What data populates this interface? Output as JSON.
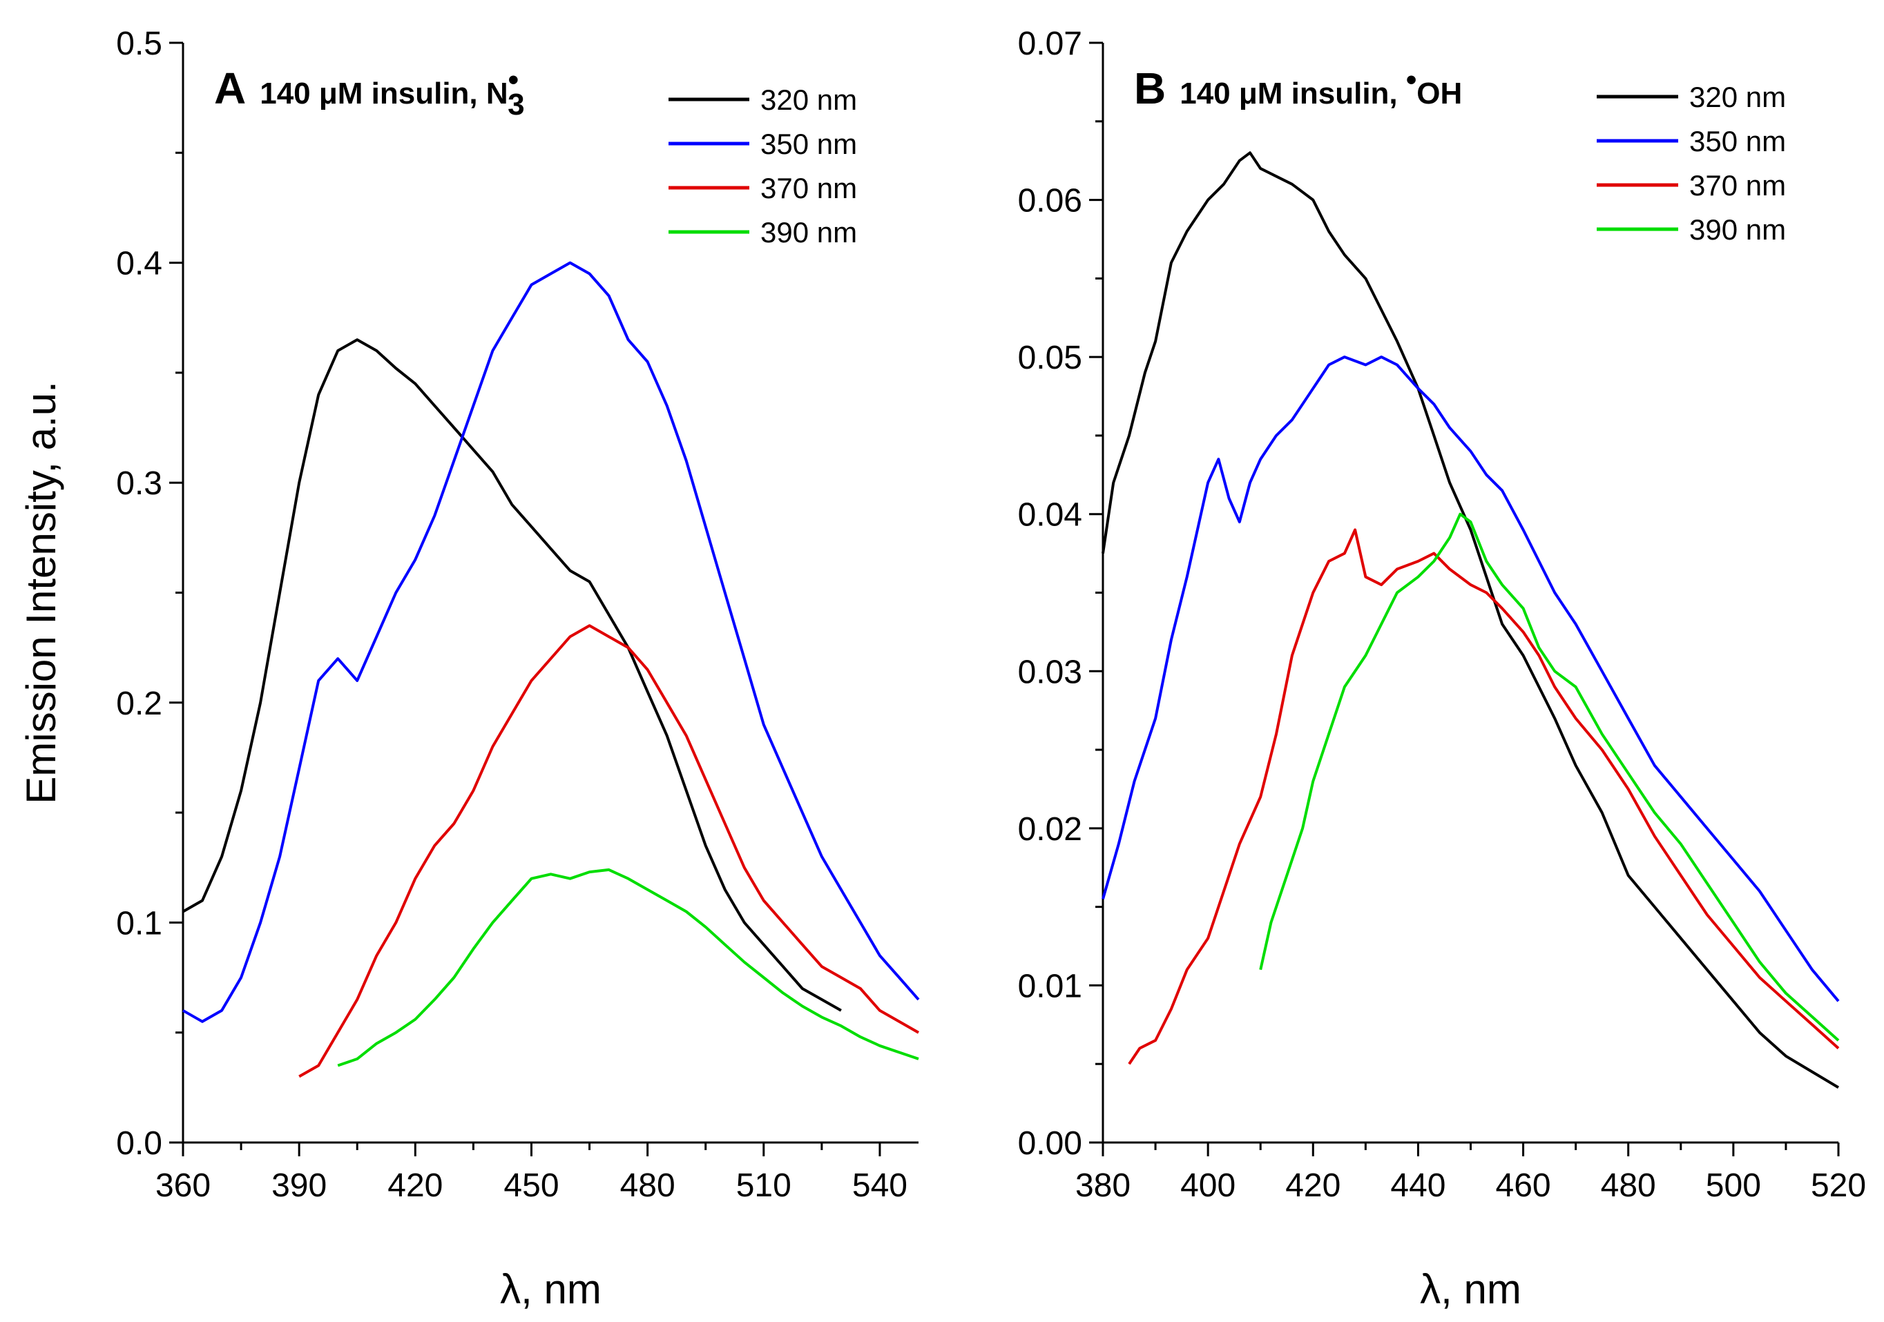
{
  "chart_data": [
    {
      "type": "line",
      "panel_letter": "A",
      "title_text": "140 μM insulin, N",
      "title_subscript": "3",
      "title_superscript": "•",
      "xlabel": "λ, nm",
      "ylabel": "Emission Intensity, a.u.",
      "xlim": [
        360,
        550
      ],
      "ylim": [
        0.0,
        0.5
      ],
      "xticks": [
        360,
        390,
        420,
        450,
        480,
        510,
        540
      ],
      "xtick_labels": [
        "360",
        "390",
        "420",
        "450",
        "480",
        "510",
        "540"
      ],
      "yticks": [
        0.0,
        0.1,
        0.2,
        0.3,
        0.4,
        0.5
      ],
      "ytick_labels": [
        "0.0",
        "0.1",
        "0.2",
        "0.3",
        "0.4",
        "0.5"
      ],
      "legend_position": "top-right",
      "series": [
        {
          "name": "320 nm",
          "color": "#000000",
          "x": [
            360,
            365,
            370,
            375,
            380,
            385,
            390,
            395,
            400,
            405,
            410,
            415,
            420,
            425,
            430,
            435,
            440,
            445,
            450,
            455,
            460,
            465,
            470,
            475,
            480,
            485,
            490,
            495,
            500,
            505,
            510,
            515,
            520,
            525,
            530
          ],
          "y": [
            0.105,
            0.11,
            0.13,
            0.16,
            0.2,
            0.25,
            0.3,
            0.34,
            0.36,
            0.365,
            0.36,
            0.352,
            0.345,
            0.335,
            0.325,
            0.315,
            0.305,
            0.29,
            0.28,
            0.27,
            0.26,
            0.255,
            0.24,
            0.225,
            0.205,
            0.185,
            0.16,
            0.135,
            0.115,
            0.1,
            0.09,
            0.08,
            0.07,
            0.065,
            0.06
          ]
        },
        {
          "name": "350 nm",
          "color": "#0000ff",
          "x": [
            360,
            365,
            370,
            375,
            380,
            385,
            390,
            395,
            400,
            405,
            410,
            415,
            420,
            425,
            430,
            435,
            440,
            445,
            450,
            455,
            460,
            465,
            470,
            475,
            480,
            485,
            490,
            495,
            500,
            505,
            510,
            515,
            520,
            525,
            530,
            535,
            540,
            545,
            550
          ],
          "y": [
            0.06,
            0.055,
            0.06,
            0.075,
            0.1,
            0.13,
            0.17,
            0.21,
            0.22,
            0.21,
            0.23,
            0.25,
            0.265,
            0.285,
            0.31,
            0.335,
            0.36,
            0.375,
            0.39,
            0.395,
            0.4,
            0.395,
            0.385,
            0.365,
            0.355,
            0.335,
            0.31,
            0.28,
            0.25,
            0.22,
            0.19,
            0.17,
            0.15,
            0.13,
            0.115,
            0.1,
            0.085,
            0.075,
            0.065
          ]
        },
        {
          "name": "370 nm",
          "color": "#e00000",
          "x": [
            390,
            395,
            400,
            405,
            410,
            415,
            420,
            425,
            430,
            435,
            440,
            445,
            450,
            455,
            460,
            465,
            470,
            475,
            480,
            485,
            490,
            495,
            500,
            505,
            510,
            515,
            520,
            525,
            530,
            535,
            540,
            545,
            550
          ],
          "y": [
            0.03,
            0.035,
            0.05,
            0.065,
            0.085,
            0.1,
            0.12,
            0.135,
            0.145,
            0.16,
            0.18,
            0.195,
            0.21,
            0.22,
            0.23,
            0.235,
            0.23,
            0.225,
            0.215,
            0.2,
            0.185,
            0.165,
            0.145,
            0.125,
            0.11,
            0.1,
            0.09,
            0.08,
            0.075,
            0.07,
            0.06,
            0.055,
            0.05
          ]
        },
        {
          "name": "390 nm",
          "color": "#00dd00",
          "x": [
            400,
            405,
            410,
            415,
            420,
            425,
            430,
            435,
            440,
            445,
            450,
            455,
            460,
            465,
            470,
            475,
            480,
            485,
            490,
            495,
            500,
            505,
            510,
            515,
            520,
            525,
            530,
            535,
            540,
            545,
            550
          ],
          "y": [
            0.035,
            0.038,
            0.045,
            0.05,
            0.056,
            0.065,
            0.075,
            0.088,
            0.1,
            0.11,
            0.12,
            0.122,
            0.12,
            0.123,
            0.124,
            0.12,
            0.115,
            0.11,
            0.105,
            0.098,
            0.09,
            0.082,
            0.075,
            0.068,
            0.062,
            0.057,
            0.053,
            0.048,
            0.044,
            0.041,
            0.038
          ]
        }
      ]
    },
    {
      "type": "line",
      "panel_letter": "B",
      "title_text": "140 μM insulin, ",
      "title_superscript": "•",
      "title_suffix": "OH",
      "xlabel": "λ, nm",
      "ylabel": "",
      "xlim": [
        380,
        520
      ],
      "ylim": [
        0.0,
        0.07
      ],
      "xticks": [
        380,
        400,
        420,
        440,
        460,
        480,
        500,
        520
      ],
      "xtick_labels": [
        "380",
        "400",
        "420",
        "440",
        "460",
        "480",
        "500",
        "520"
      ],
      "yticks": [
        0.0,
        0.01,
        0.02,
        0.03,
        0.04,
        0.05,
        0.06,
        0.07
      ],
      "ytick_labels": [
        "0.00",
        "0.01",
        "0.02",
        "0.03",
        "0.04",
        "0.05",
        "0.06",
        "0.07"
      ],
      "legend_position": "top-right",
      "series": [
        {
          "name": "320 nm",
          "color": "#000000",
          "x": [
            380,
            382,
            385,
            388,
            390,
            393,
            396,
            400,
            403,
            406,
            408,
            410,
            413,
            416,
            420,
            423,
            426,
            430,
            433,
            436,
            440,
            443,
            446,
            450,
            453,
            456,
            460,
            463,
            466,
            470,
            475,
            480,
            485,
            490,
            495,
            500,
            505,
            510,
            515,
            520
          ],
          "y": [
            0.0375,
            0.042,
            0.045,
            0.049,
            0.051,
            0.056,
            0.058,
            0.06,
            0.061,
            0.0625,
            0.063,
            0.062,
            0.0615,
            0.061,
            0.06,
            0.058,
            0.0565,
            0.055,
            0.053,
            0.051,
            0.048,
            0.045,
            0.042,
            0.039,
            0.036,
            0.033,
            0.031,
            0.029,
            0.027,
            0.024,
            0.021,
            0.017,
            0.015,
            0.013,
            0.011,
            0.009,
            0.007,
            0.0055,
            0.0045,
            0.0035
          ]
        },
        {
          "name": "350 nm",
          "color": "#0000ff",
          "x": [
            380,
            383,
            386,
            390,
            393,
            396,
            400,
            402,
            404,
            406,
            408,
            410,
            413,
            416,
            420,
            423,
            426,
            430,
            433,
            436,
            440,
            443,
            446,
            450,
            453,
            456,
            460,
            463,
            466,
            470,
            475,
            480,
            485,
            490,
            495,
            500,
            505,
            510,
            515,
            520
          ],
          "y": [
            0.0155,
            0.019,
            0.023,
            0.027,
            0.032,
            0.036,
            0.042,
            0.0435,
            0.041,
            0.0395,
            0.042,
            0.0435,
            0.045,
            0.046,
            0.048,
            0.0495,
            0.05,
            0.0495,
            0.05,
            0.0495,
            0.048,
            0.047,
            0.0455,
            0.044,
            0.0425,
            0.0415,
            0.039,
            0.037,
            0.035,
            0.033,
            0.03,
            0.027,
            0.024,
            0.022,
            0.02,
            0.018,
            0.016,
            0.0135,
            0.011,
            0.009
          ]
        },
        {
          "name": "370 nm",
          "color": "#e00000",
          "x": [
            385,
            387,
            390,
            393,
            396,
            400,
            403,
            406,
            410,
            413,
            416,
            420,
            423,
            426,
            428,
            430,
            433,
            436,
            440,
            443,
            446,
            450,
            453,
            456,
            460,
            463,
            466,
            470,
            475,
            480,
            485,
            490,
            495,
            500,
            505,
            510,
            515,
            520
          ],
          "y": [
            0.005,
            0.006,
            0.0065,
            0.0085,
            0.011,
            0.013,
            0.016,
            0.019,
            0.022,
            0.026,
            0.031,
            0.035,
            0.037,
            0.0375,
            0.039,
            0.036,
            0.0355,
            0.0365,
            0.037,
            0.0375,
            0.0365,
            0.0355,
            0.035,
            0.034,
            0.0325,
            0.031,
            0.029,
            0.027,
            0.025,
            0.0225,
            0.0195,
            0.017,
            0.0145,
            0.0125,
            0.0105,
            0.009,
            0.0075,
            0.006
          ]
        },
        {
          "name": "390 nm",
          "color": "#00dd00",
          "x": [
            410,
            412,
            415,
            418,
            420,
            423,
            426,
            430,
            433,
            436,
            440,
            443,
            446,
            448,
            450,
            453,
            456,
            460,
            463,
            466,
            470,
            475,
            480,
            485,
            490,
            495,
            500,
            505,
            510,
            515,
            520
          ],
          "y": [
            0.011,
            0.014,
            0.017,
            0.02,
            0.023,
            0.026,
            0.029,
            0.031,
            0.033,
            0.035,
            0.036,
            0.037,
            0.0385,
            0.04,
            0.0395,
            0.037,
            0.0355,
            0.034,
            0.0315,
            0.03,
            0.029,
            0.026,
            0.0235,
            0.021,
            0.019,
            0.0165,
            0.014,
            0.0115,
            0.0095,
            0.008,
            0.0065
          ]
        }
      ]
    }
  ]
}
